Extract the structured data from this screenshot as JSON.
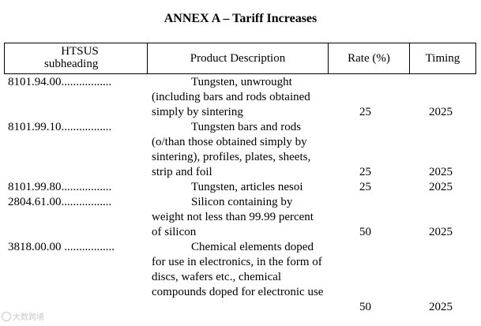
{
  "title": "ANNEX A – Tariff Increases",
  "table": {
    "headers": {
      "hts_line1": "HTSUS",
      "hts_line2": "subheading",
      "description": "Product Description",
      "rate": "Rate (%)",
      "timing": "Timing"
    },
    "rows": [
      {
        "code": "8101.94.00.................",
        "description": "Tungsten, unwrought (including bars and rods obtained simply by sintering",
        "rate": "25",
        "timing": "2025"
      },
      {
        "code": "8101.99.10.................",
        "description": "Tungsten bars and rods (o/than those obtained simply by sintering), profiles, plates, sheets, strip and foil",
        "rate": "25",
        "timing": "2025"
      },
      {
        "code": "8101.99.80.................",
        "description": "Tungsten, articles nesoi",
        "rate": "25",
        "timing": "2025"
      },
      {
        "code": "2804.61.00.................",
        "description": "Silicon containing by weight not less than 99.99 percent of silicon",
        "rate": "50",
        "timing": "2025"
      },
      {
        "code": "3818.00.00 .................",
        "description": "Chemical elements doped for use in electronics, in the form of discs, wafers etc., chemical compounds doped for electronic use",
        "rate": "50",
        "timing": "2025"
      }
    ]
  },
  "watermark": {
    "logo": "watermark-logo-icon",
    "text": "大数跨境"
  }
}
